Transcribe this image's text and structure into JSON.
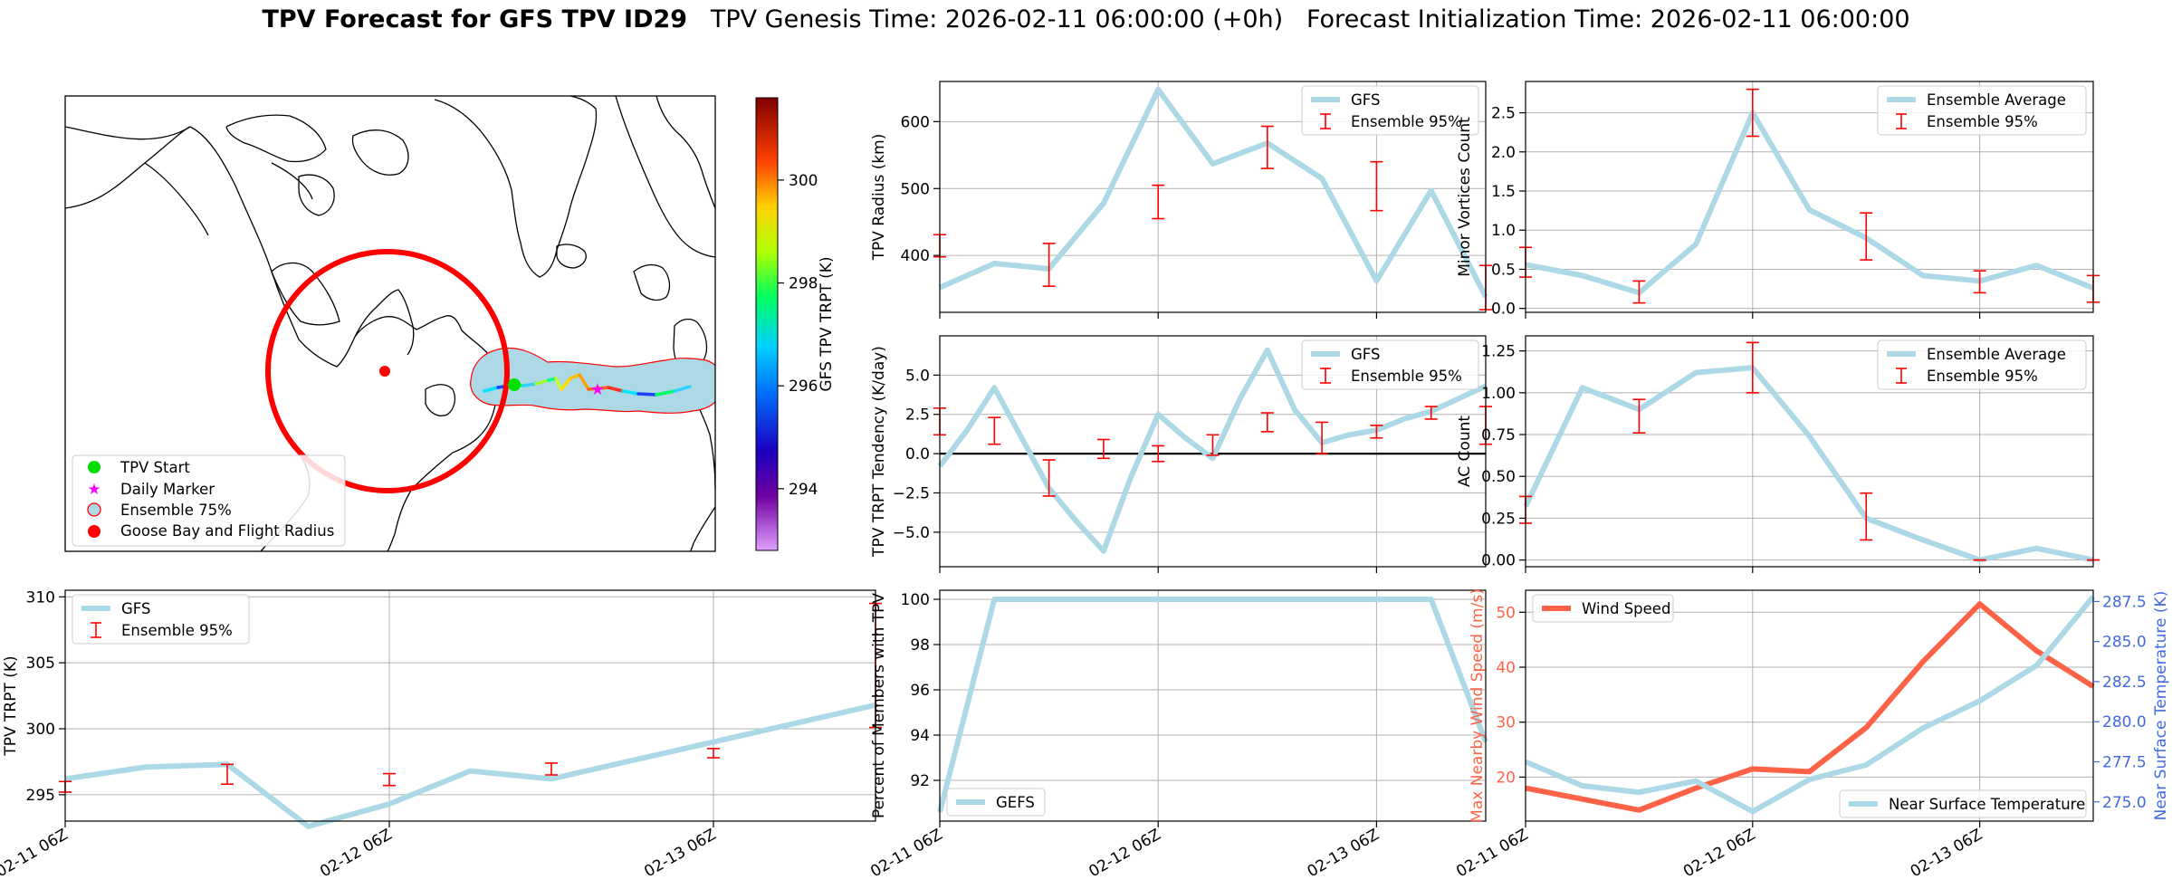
{
  "header": {
    "title_bold": "TPV Forecast for GFS TPV ID29",
    "genesis": "TPV Genesis Time: 2026-02-11 06:00:00 (+0h)",
    "init": "Forecast Initialization Time: 2026-02-11 06:00:00"
  },
  "colors": {
    "main_line": "#add8e6",
    "error_bar": "#ff0000",
    "wind": "#ff6347",
    "temp_axis": "#4169e1",
    "ocean": "#ffffff",
    "ensemble_fill": "#add8e6",
    "flight_circle": "#ff0000"
  },
  "map": {
    "colorbar_label": "GFS TPV TRPT (K)",
    "colorbar_ticks": [
      "294",
      "296",
      "298",
      "300"
    ],
    "colorbar_range": [
      292.8,
      301.6
    ],
    "legend": [
      "TPV Start",
      "Daily Marker",
      "Ensemble 75%",
      "Goose Bay and Flight Radius"
    ],
    "track_colors": [
      "#00e5ff",
      "#2040ff",
      "#00ff60",
      "#30d0ff",
      "#a0ff30",
      "#00ff90",
      "#d0ff20",
      "#ffe000",
      "#ffc000",
      "#ffa000",
      "#ff6020",
      "#ff3020"
    ]
  },
  "chart_data": [
    {
      "id": "tpv_radius",
      "type": "line",
      "ylabel": "TPV Radius (km)",
      "legend": [
        "GFS",
        "Ensemble 95%"
      ],
      "yticks": [
        400,
        500,
        600
      ],
      "ylim": [
        315,
        660
      ],
      "x_hours": [
        0,
        6,
        12,
        18,
        24,
        30,
        36,
        42,
        48,
        54,
        60
      ],
      "series": [
        {
          "name": "GFS",
          "values": [
            352,
            388,
            380,
            478,
            648,
            537,
            568,
            515,
            362,
            497,
            338
          ]
        }
      ],
      "error_bars": [
        {
          "x": 0,
          "low": 398,
          "high": 431
        },
        {
          "x": 12,
          "low": 354,
          "high": 418
        },
        {
          "x": 24,
          "low": 455,
          "high": 505
        },
        {
          "x": 36,
          "low": 530,
          "high": 593
        },
        {
          "x": 48,
          "low": 467,
          "high": 540
        },
        {
          "x": 60,
          "low": 319,
          "high": 385
        }
      ]
    },
    {
      "id": "minor_vortices",
      "type": "line",
      "ylabel": "Minor Vortices Count",
      "legend": [
        "Ensemble Average",
        "Ensemble 95%"
      ],
      "yticks": [
        "0.0",
        "0.5",
        "1.0",
        "1.5",
        "2.0",
        "2.5"
      ],
      "ylim": [
        -0.05,
        2.9
      ],
      "x_hours": [
        0,
        6,
        12,
        18,
        24,
        30,
        36,
        42,
        48,
        54,
        60
      ],
      "series": [
        {
          "name": "Ensemble Average",
          "values": [
            0.56,
            0.42,
            0.2,
            0.82,
            2.5,
            1.26,
            0.9,
            0.42,
            0.35,
            0.55,
            0.26
          ]
        }
      ],
      "error_bars": [
        {
          "x": 0,
          "low": 0.4,
          "high": 0.78
        },
        {
          "x": 12,
          "low": 0.07,
          "high": 0.35
        },
        {
          "x": 24,
          "low": 2.2,
          "high": 2.8
        },
        {
          "x": 36,
          "low": 0.62,
          "high": 1.22
        },
        {
          "x": 48,
          "low": 0.2,
          "high": 0.48
        },
        {
          "x": 60,
          "low": 0.08,
          "high": 0.42
        }
      ]
    },
    {
      "id": "trpt_tendency",
      "type": "line",
      "ylabel": "TPV TRPT Tendency (K/day)",
      "legend": [
        "GFS",
        "Ensemble 95%"
      ],
      "yticks": [
        "−5.0",
        "−2.5",
        "0.0",
        "2.5",
        "5.0"
      ],
      "ylim": [
        -7.2,
        7.5
      ],
      "x_hours": [
        0,
        3,
        6,
        9,
        12,
        15,
        18,
        21,
        24,
        27,
        30,
        33,
        36,
        39,
        42,
        45,
        48,
        51,
        54,
        57,
        60
      ],
      "series": [
        {
          "name": "GFS",
          "values": [
            -0.8,
            1.5,
            4.2,
            1.0,
            -2.2,
            -4.3,
            -6.2,
            -1.5,
            2.5,
            1.0,
            -0.3,
            3.5,
            6.6,
            2.8,
            0.7,
            1.2,
            1.5,
            2.2,
            2.7,
            3.5,
            4.3
          ]
        }
      ],
      "error_bars": [
        {
          "x": 0,
          "low": 1.2,
          "high": 2.9
        },
        {
          "x": 6,
          "low": 0.6,
          "high": 2.3
        },
        {
          "x": 12,
          "low": -2.7,
          "high": -0.4
        },
        {
          "x": 18,
          "low": -0.3,
          "high": 0.9
        },
        {
          "x": 24,
          "low": -0.5,
          "high": 0.5
        },
        {
          "x": 30,
          "low": -0.1,
          "high": 1.2
        },
        {
          "x": 36,
          "low": 1.4,
          "high": 2.6
        },
        {
          "x": 42,
          "low": 0.0,
          "high": 2.0
        },
        {
          "x": 48,
          "low": 1.0,
          "high": 1.8
        },
        {
          "x": 54,
          "low": 2.2,
          "high": 3.0
        },
        {
          "x": 60,
          "low": 0.6,
          "high": 3.0
        }
      ],
      "zero_line": true
    },
    {
      "id": "ac_count",
      "type": "line",
      "ylabel": "AC Count",
      "legend": [
        "Ensemble Average",
        "Ensemble 95%"
      ],
      "yticks": [
        "0.00",
        "0.25",
        "0.50",
        "0.75",
        "1.00",
        "1.25"
      ],
      "ylim": [
        -0.04,
        1.34
      ],
      "x_hours": [
        0,
        6,
        12,
        18,
        24,
        30,
        36,
        42,
        48,
        54,
        60
      ],
      "series": [
        {
          "name": "Ensemble Average",
          "values": [
            0.32,
            1.03,
            0.9,
            1.12,
            1.15,
            0.74,
            0.25,
            0.12,
            0.0,
            0.07,
            0.0
          ]
        }
      ],
      "error_bars": [
        {
          "x": 0,
          "low": 0.22,
          "high": 0.38
        },
        {
          "x": 12,
          "low": 0.76,
          "high": 0.96
        },
        {
          "x": 24,
          "low": 1.0,
          "high": 1.3
        },
        {
          "x": 36,
          "low": 0.12,
          "high": 0.4
        },
        {
          "x": 48,
          "low": 0.0,
          "high": 0.0
        },
        {
          "x": 60,
          "low": 0.0,
          "high": 0.0
        }
      ]
    },
    {
      "id": "tpv_trpt",
      "type": "line",
      "ylabel": "TPV TRPT (K)",
      "legend": [
        "GFS",
        "Ensemble 95%"
      ],
      "yticks": [
        "295",
        "300",
        "305",
        "310"
      ],
      "ylim": [
        293,
        310.5
      ],
      "xticks": [
        "02-11 06Z",
        "02-12 06Z",
        "02-13 06Z"
      ],
      "x_hours": [
        0,
        6,
        12,
        18,
        24,
        30,
        36,
        42,
        48,
        54,
        60
      ],
      "series": [
        {
          "name": "GFS",
          "values": [
            296.2,
            297.1,
            297.3,
            292.6,
            294.3,
            296.8,
            296.2,
            297.6,
            299.0,
            300.4,
            301.8
          ]
        }
      ],
      "error_bars": [
        {
          "x": 0,
          "low": 295.2,
          "high": 296.0
        },
        {
          "x": 12,
          "low": 295.8,
          "high": 297.3
        },
        {
          "x": 24,
          "low": 295.7,
          "high": 296.6
        },
        {
          "x": 36,
          "low": 296.5,
          "high": 297.4
        },
        {
          "x": 48,
          "low": 297.8,
          "high": 298.5
        },
        {
          "x": 60,
          "low": 300.1,
          "high": 309.5
        }
      ]
    },
    {
      "id": "percent_members",
      "type": "line",
      "ylabel": "Percent of Members with TPV",
      "legend": [
        "GEFS"
      ],
      "yticks": [
        "92",
        "94",
        "96",
        "98",
        "100"
      ],
      "ylim": [
        90.2,
        100.4
      ],
      "xticks": [
        "02-11 06Z",
        "02-12 06Z",
        "02-13 06Z"
      ],
      "x_hours": [
        0,
        6,
        12,
        18,
        24,
        30,
        36,
        42,
        48,
        54,
        60
      ],
      "series": [
        {
          "name": "GEFS",
          "values": [
            90.6,
            100,
            100,
            100,
            100,
            100,
            100,
            100,
            100,
            100,
            93.7
          ]
        }
      ]
    },
    {
      "id": "wind_temp",
      "type": "line",
      "ylabel": "Max Nearby Wind Speed (m/s)",
      "ylabel2": "Near Surface Temperature (K)",
      "legend": [
        "Wind Speed",
        "Near Surface Temperature"
      ],
      "yticks": [
        "20",
        "30",
        "40",
        "50"
      ],
      "ylim": [
        12,
        54
      ],
      "yticks2": [
        "275.0",
        "277.5",
        "280.0",
        "282.5",
        "285.0",
        "287.5"
      ],
      "ylim2": [
        273.8,
        288.2
      ],
      "xticks": [
        "02-11 06Z",
        "02-12 06Z",
        "02-13 06Z"
      ],
      "x_hours": [
        0,
        6,
        12,
        18,
        24,
        30,
        36,
        42,
        48,
        54,
        60
      ],
      "series": [
        {
          "name": "Wind Speed",
          "values": [
            18,
            16,
            14,
            18,
            21.5,
            21,
            29,
            41,
            51.5,
            43,
            36.5
          ]
        },
        {
          "name": "Near Surface Temperature",
          "values": [
            277.5,
            276.0,
            275.6,
            276.3,
            274.4,
            276.4,
            277.3,
            279.6,
            281.3,
            283.5,
            287.8
          ]
        }
      ]
    }
  ]
}
